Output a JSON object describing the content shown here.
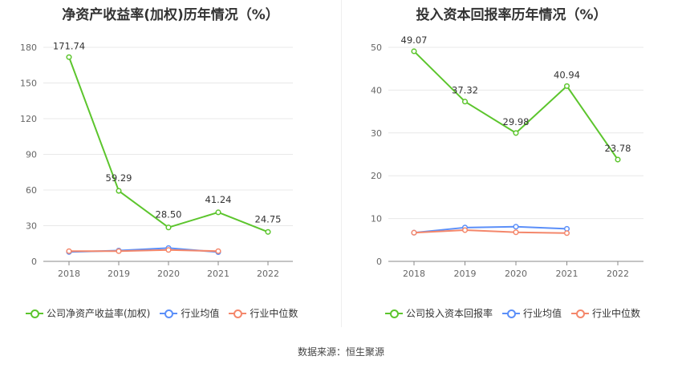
{
  "colors": {
    "company": "#5cc52d",
    "industry_avg": "#5b8ff9",
    "industry_median": "#f4876b",
    "grid": "#e8e8e8",
    "axis": "#888888"
  },
  "source_text": "数据来源：恒生聚源",
  "chart_data": [
    {
      "type": "line",
      "title": "净资产收益率(加权)历年情况（%）",
      "categories": [
        "2018",
        "2019",
        "2020",
        "2021",
        "2022"
      ],
      "ylim": [
        0,
        180
      ],
      "yticks": [
        0,
        30,
        60,
        90,
        120,
        150,
        180
      ],
      "grid": true,
      "legend_position": "bottom",
      "series": [
        {
          "name": "公司净资产收益率(加权)",
          "values": [
            171.74,
            59.29,
            28.5,
            41.24,
            24.75
          ],
          "labels": [
            "171.74",
            "59.29",
            "28.50",
            "41.24",
            "24.75"
          ],
          "color": "#5cc52d"
        },
        {
          "name": "行业均值",
          "values": [
            7.9,
            9.1,
            11.2,
            7.8,
            null
          ],
          "color": "#5b8ff9"
        },
        {
          "name": "行业中位数",
          "values": [
            8.6,
            8.6,
            9.6,
            8.6,
            null
          ],
          "color": "#f4876b"
        }
      ]
    },
    {
      "type": "line",
      "title": "投入资本回报率历年情况（%）",
      "categories": [
        "2018",
        "2019",
        "2020",
        "2021",
        "2022"
      ],
      "ylim": [
        0,
        50
      ],
      "yticks": [
        0,
        10,
        20,
        30,
        40,
        50
      ],
      "grid": true,
      "legend_position": "bottom",
      "series": [
        {
          "name": "公司投入资本回报率",
          "values": [
            49.07,
            37.32,
            29.98,
            40.94,
            23.78
          ],
          "labels": [
            "49.07",
            "37.32",
            "29.98",
            "40.94",
            "23.78"
          ],
          "color": "#5cc52d"
        },
        {
          "name": "行业均值",
          "values": [
            6.7,
            7.9,
            8.1,
            7.6,
            null
          ],
          "color": "#5b8ff9"
        },
        {
          "name": "行业中位数",
          "values": [
            6.7,
            7.3,
            6.8,
            6.6,
            null
          ],
          "color": "#f4876b"
        }
      ]
    }
  ]
}
